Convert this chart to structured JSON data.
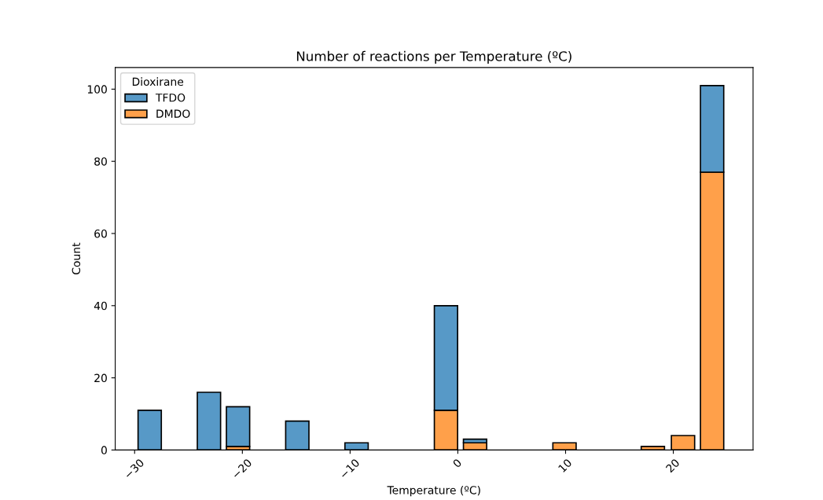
{
  "chart_data": {
    "type": "bar",
    "title": "Number of reactions per Temperature (ºC)",
    "xlabel": "Temperature (ºC)",
    "ylabel": "Count",
    "legend_title": "Dioxirane",
    "x": [
      -28.6,
      -25.9,
      -23.1,
      -20.4,
      -17.6,
      -14.9,
      -12.1,
      -9.4,
      -6.6,
      -3.9,
      -1.1,
      1.6,
      4.4,
      7.1,
      9.9,
      12.6,
      15.4,
      18.1,
      20.9,
      23.6
    ],
    "stacked": true,
    "series": [
      {
        "name": "DMDO",
        "color": "#ffa04a",
        "values": [
          0,
          0,
          0,
          1,
          0,
          0,
          0,
          0,
          0,
          0,
          11,
          2,
          0,
          0,
          2,
          0,
          0,
          1,
          4,
          77
        ]
      },
      {
        "name": "TFDO",
        "color": "#5799c7",
        "values": [
          11,
          0,
          16,
          11,
          0,
          8,
          0,
          2,
          0,
          0,
          29,
          1,
          0,
          0,
          0,
          0,
          0,
          0,
          0,
          24
        ]
      }
    ],
    "xlim": [
      -31.8,
      27.4
    ],
    "ylim": [
      0,
      106
    ],
    "xticks": [
      {
        "value": -30,
        "label": "−30"
      },
      {
        "value": -20,
        "label": "−20"
      },
      {
        "value": -10,
        "label": "−10"
      },
      0,
      10,
      20
    ],
    "yticks": [
      0,
      20,
      40,
      60,
      80,
      100
    ],
    "grid": false,
    "legend": "top left"
  }
}
